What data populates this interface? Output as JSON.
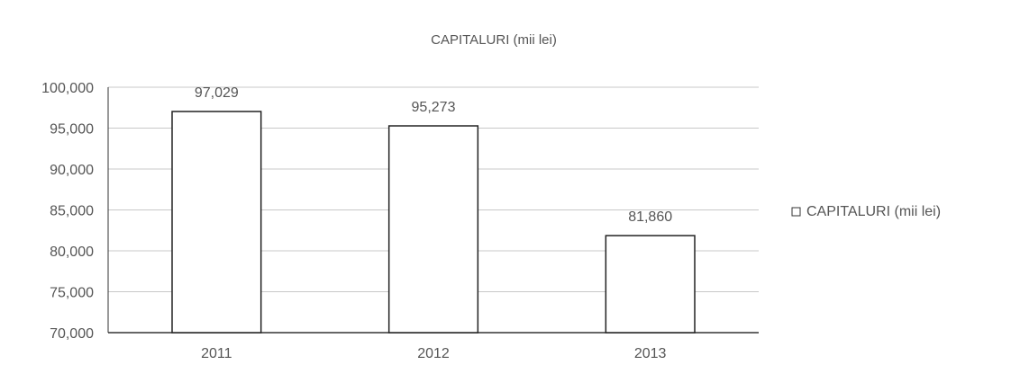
{
  "chart_data": {
    "type": "bar",
    "title": "CAPITALURI (mii lei)",
    "categories": [
      "2011",
      "2012",
      "2013"
    ],
    "series": [
      {
        "name": "CAPITALURI (mii lei)",
        "values": [
          97029,
          95273,
          81860
        ]
      }
    ],
    "data_labels": [
      "97,029",
      "95,273",
      "81,860"
    ],
    "y_ticks": [
      70000,
      75000,
      80000,
      85000,
      90000,
      95000,
      100000
    ],
    "y_tick_labels": [
      "70,000",
      "75,000",
      "80,000",
      "85,000",
      "90,000",
      "95,000",
      "100,000"
    ],
    "ylim": [
      70000,
      100000
    ],
    "xlabel": "",
    "ylabel": "",
    "grid": true,
    "legend": "right",
    "colors": {
      "bar_fill": "#ffffff",
      "bar_stroke": "#222222",
      "grid": "#c8c8c8",
      "axis": "#333333",
      "text": "#555555"
    }
  }
}
